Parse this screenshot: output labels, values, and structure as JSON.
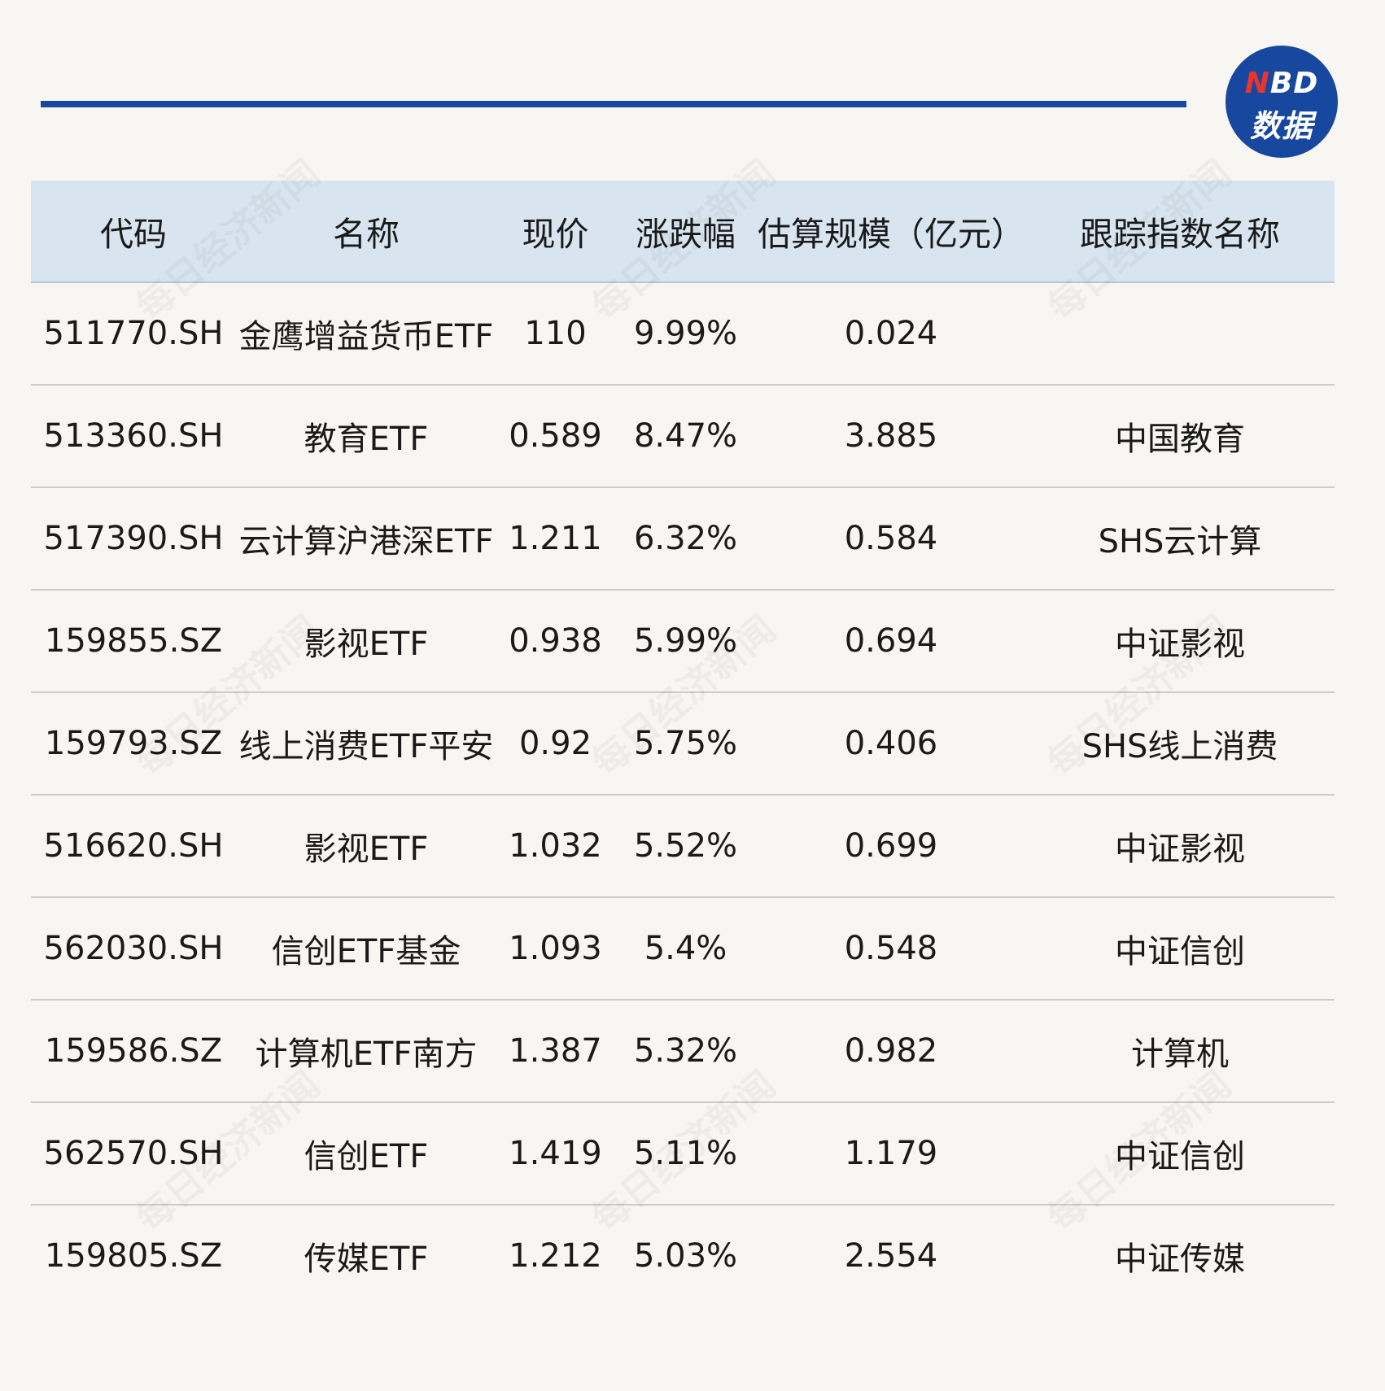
{
  "logo": {
    "brand_n": "N",
    "brand_rest": "BD",
    "subtitle": "数据"
  },
  "watermark_text": "每日经济新闻",
  "table": {
    "headers": [
      "代码",
      "名称",
      "现价",
      "涨跌幅",
      "估算规模（亿元）",
      "跟踪指数名称"
    ],
    "rows": [
      {
        "code": "511770.SH",
        "name": "金鹰增益货币ETF",
        "price": "110",
        "change": "9.99%",
        "size": "0.024",
        "index": ""
      },
      {
        "code": "513360.SH",
        "name": "教育ETF",
        "price": "0.589",
        "change": "8.47%",
        "size": "3.885",
        "index": "中国教育"
      },
      {
        "code": "517390.SH",
        "name": "云计算沪港深ETF",
        "price": "1.211",
        "change": "6.32%",
        "size": "0.584",
        "index": "SHS云计算"
      },
      {
        "code": "159855.SZ",
        "name": "影视ETF",
        "price": "0.938",
        "change": "5.99%",
        "size": "0.694",
        "index": "中证影视"
      },
      {
        "code": "159793.SZ",
        "name": "线上消费ETF平安",
        "price": "0.92",
        "change": "5.75%",
        "size": "0.406",
        "index": "SHS线上消费"
      },
      {
        "code": "516620.SH",
        "name": "影视ETF",
        "price": "1.032",
        "change": "5.52%",
        "size": "0.699",
        "index": "中证影视"
      },
      {
        "code": "562030.SH",
        "name": "信创ETF基金",
        "price": "1.093",
        "change": "5.4%",
        "size": "0.548",
        "index": "中证信创"
      },
      {
        "code": "159586.SZ",
        "name": "计算机ETF南方",
        "price": "1.387",
        "change": "5.32%",
        "size": "0.982",
        "index": "计算机"
      },
      {
        "code": "562570.SH",
        "name": "信创ETF",
        "price": "1.419",
        "change": "5.11%",
        "size": "1.179",
        "index": "中证信创"
      },
      {
        "code": "159805.SZ",
        "name": "传媒ETF",
        "price": "1.212",
        "change": "5.03%",
        "size": "2.554",
        "index": "中证传媒"
      }
    ]
  }
}
